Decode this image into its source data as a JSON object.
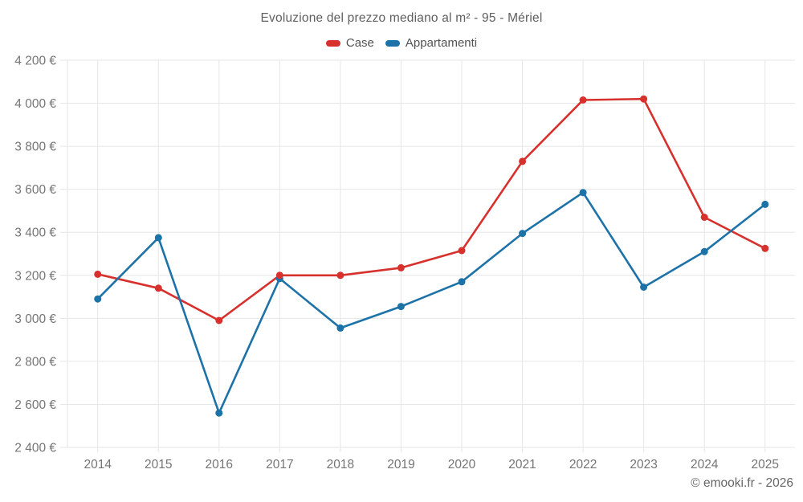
{
  "page": {
    "footer": "© emooki.fr - 2026"
  },
  "chart_data": {
    "type": "line",
    "title": "Evoluzione del prezzo mediano al m² - 95 - Mériel",
    "categories": [
      "2014",
      "2015",
      "2016",
      "2017",
      "2018",
      "2019",
      "2020",
      "2021",
      "2022",
      "2023",
      "2024",
      "2025"
    ],
    "series": [
      {
        "name": "Case",
        "color": "#d7312e",
        "values": [
          3205,
          3140,
          2990,
          3200,
          3200,
          3235,
          3315,
          3730,
          4015,
          4020,
          3470,
          3325
        ]
      },
      {
        "name": "Appartamenti",
        "color": "#1d72a8",
        "values": [
          3090,
          3375,
          2560,
          3185,
          2955,
          3055,
          3170,
          3395,
          3585,
          3145,
          3310,
          3530
        ]
      }
    ],
    "ylim": [
      2400,
      4200
    ],
    "ytick_step": 200,
    "yticks": [
      {
        "value": 2400,
        "label": "2 400 €"
      },
      {
        "value": 2600,
        "label": "2 600 €"
      },
      {
        "value": 2800,
        "label": "2 800 €"
      },
      {
        "value": 3000,
        "label": "3 000 €"
      },
      {
        "value": 3200,
        "label": "3 200 €"
      },
      {
        "value": 3400,
        "label": "3 400 €"
      },
      {
        "value": 3600,
        "label": "3 600 €"
      },
      {
        "value": 3800,
        "label": "3 800 €"
      },
      {
        "value": 4000,
        "label": "4 000 €"
      },
      {
        "value": 4200,
        "label": "4 200 €"
      }
    ],
    "grid": true,
    "legend_position": "top"
  }
}
